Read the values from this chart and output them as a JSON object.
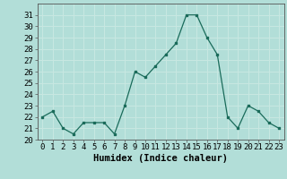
{
  "x": [
    0,
    1,
    2,
    3,
    4,
    5,
    6,
    7,
    8,
    9,
    10,
    11,
    12,
    13,
    14,
    15,
    16,
    17,
    18,
    19,
    20,
    21,
    22,
    23
  ],
  "y": [
    22,
    22.5,
    21,
    20.5,
    21.5,
    21.5,
    21.5,
    20.5,
    23,
    26,
    25.5,
    26.5,
    27.5,
    28.5,
    31,
    31,
    29,
    27.5,
    22,
    21,
    23,
    22.5,
    21.5,
    21
  ],
  "line_color": "#1a6b5a",
  "bg_color": "#b2ded8",
  "grid_color": "#c8e8e2",
  "xlabel": "Humidex (Indice chaleur)",
  "ylim": [
    20,
    32
  ],
  "yticks": [
    20,
    21,
    22,
    23,
    24,
    25,
    26,
    27,
    28,
    29,
    30,
    31
  ],
  "tick_fontsize": 6.5,
  "xlabel_fontsize": 7.5
}
